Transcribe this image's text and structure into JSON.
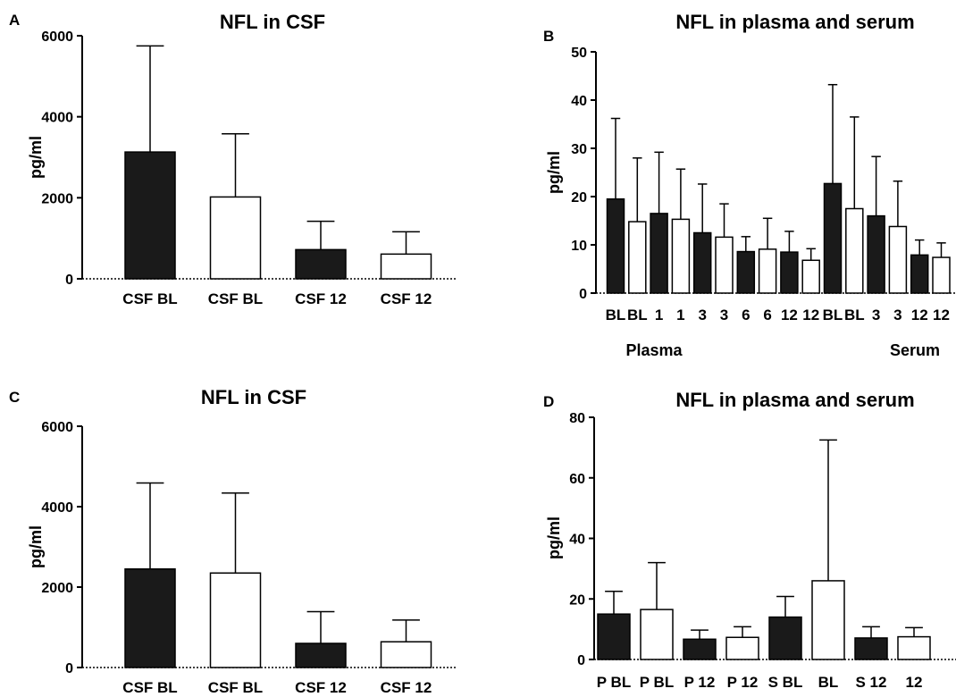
{
  "colors": {
    "filled": "#1a1a1a",
    "open": "#ffffff",
    "stroke": "#000000"
  },
  "chart_data": [
    {
      "type": "bar",
      "panel": "A",
      "title": "NFL in CSF",
      "ylabel": "pg/ml",
      "xlabel": "",
      "ylim": [
        0,
        6000
      ],
      "yticks": [
        0,
        2000,
        4000,
        6000
      ],
      "grid": false,
      "categories": [
        "CSF BL",
        "CSF BL",
        "CSF 12",
        "CSF 12"
      ],
      "values": [
        3130,
        2020,
        720,
        610
      ],
      "errors": [
        2620,
        1560,
        700,
        550
      ],
      "fills": [
        "filled",
        "open",
        "filled",
        "open"
      ]
    },
    {
      "type": "bar",
      "panel": "B",
      "title": "NFL in plasma and serum",
      "ylabel": "pg/ml",
      "xlabel": "",
      "ylim": [
        0,
        50
      ],
      "yticks": [
        0,
        10,
        20,
        30,
        40,
        50
      ],
      "grid": false,
      "categories": [
        "BL",
        "BL",
        "1",
        "1",
        "3",
        "3",
        "6",
        "6",
        "12",
        "12",
        "BL",
        "BL",
        "3",
        "3",
        "12",
        "12"
      ],
      "values": [
        19.5,
        14.8,
        16.5,
        15.3,
        12.5,
        11.6,
        8.6,
        9.1,
        8.5,
        6.8,
        22.7,
        17.5,
        16.0,
        13.8,
        7.9,
        7.4
      ],
      "errors": [
        16.7,
        13.2,
        12.7,
        10.4,
        10.1,
        6.9,
        3.1,
        6.4,
        4.3,
        2.4,
        20.5,
        19.0,
        12.3,
        9.4,
        3.1,
        3.0
      ],
      "fills": [
        "filled",
        "open",
        "filled",
        "open",
        "filled",
        "open",
        "filled",
        "open",
        "filled",
        "open",
        "filled",
        "open",
        "filled",
        "open",
        "filled",
        "open"
      ],
      "groups": [
        {
          "label": "Plasma",
          "start": 0,
          "end": 9
        },
        {
          "label": "Serum",
          "start": 10,
          "end": 15
        }
      ]
    },
    {
      "type": "bar",
      "panel": "C",
      "title": "NFL in CSF",
      "ylabel": "pg/ml",
      "xlabel": "",
      "ylim": [
        0,
        6000
      ],
      "yticks": [
        0,
        2000,
        4000,
        6000
      ],
      "grid": false,
      "categories": [
        "CSF BL",
        "CSF BL",
        "CSF 12",
        "CSF 12"
      ],
      "values": [
        2450,
        2350,
        600,
        640
      ],
      "errors": [
        2140,
        1990,
        790,
        540
      ],
      "fills": [
        "filled",
        "open",
        "filled",
        "open"
      ]
    },
    {
      "type": "bar",
      "panel": "D",
      "title": "NFL in plasma and serum",
      "ylabel": "pg/ml",
      "xlabel": "",
      "ylim": [
        0,
        80
      ],
      "yticks": [
        0,
        20,
        40,
        60,
        80
      ],
      "grid": false,
      "categories": [
        "P BL",
        "P BL",
        "P 12",
        "P 12",
        "S BL",
        "BL",
        "S 12",
        "12"
      ],
      "values": [
        15.0,
        16.5,
        6.7,
        7.3,
        14.0,
        26.0,
        7.1,
        7.5
      ],
      "errors": [
        7.5,
        15.5,
        3.0,
        3.5,
        6.8,
        46.5,
        3.7,
        3.0
      ],
      "fills": [
        "filled",
        "open",
        "filled",
        "open",
        "filled",
        "open",
        "filled",
        "open"
      ]
    }
  ]
}
